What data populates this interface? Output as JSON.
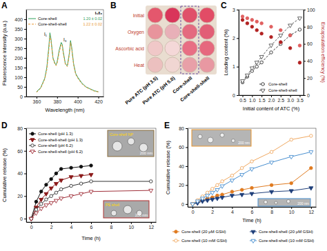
{
  "chart_data": [
    {
      "type": "line",
      "title": "A",
      "x_label": "Wavelength (nm)",
      "y_label": "Fluorescence intensity (a.u.)",
      "x": [
        360,
        364,
        368,
        370,
        372,
        373,
        374,
        376,
        378,
        379,
        380,
        382,
        384,
        385,
        386,
        388,
        390,
        392,
        393,
        394,
        396,
        398,
        400,
        404,
        408,
        412,
        416,
        420
      ],
      "xlim": [
        350,
        425
      ],
      "xticks": [
        360,
        380,
        400,
        420
      ],
      "ylim": [
        0,
        450
      ],
      "yticks": [
        0,
        50,
        100,
        150,
        200,
        250,
        300,
        350,
        400
      ],
      "legend": "top-right",
      "annotations": [
        "I₁/I₃",
        "1.20 ± 0.02",
        "1.22 ± 0.02",
        "I₁",
        "I₃"
      ],
      "series": [
        {
          "name": "Core-shell",
          "color": "#2e9e5b",
          "line_style": "solid",
          "values": [
            25,
            45,
            95,
            150,
            260,
            330,
            300,
            200,
            170,
            165,
            180,
            240,
            280,
            270,
            230,
            170,
            160,
            230,
            290,
            260,
            170,
            120,
            100,
            70,
            50,
            40,
            30,
            25
          ]
        },
        {
          "name": "Core-shell-shell",
          "color": "#e8952f",
          "line_style": "dashed",
          "values": [
            22,
            42,
            90,
            140,
            245,
            315,
            290,
            195,
            165,
            160,
            172,
            230,
            270,
            262,
            222,
            165,
            155,
            222,
            280,
            252,
            165,
            115,
            95,
            66,
            48,
            38,
            28,
            24
          ]
        }
      ]
    },
    {
      "type": "scatter",
      "title": "C",
      "x_label": "Initial content of ATC (%)",
      "y_label": "Loading content (%)",
      "y2_label": "Encapsulation efficiency (%)",
      "x": [
        0.5,
        0.75,
        1,
        1.25,
        1.5,
        2,
        2.5,
        3,
        3.5
      ],
      "xlim": [
        0.3,
        3.7
      ],
      "xticks": [
        0.5,
        {
          "value": 1,
          "label": "1.0"
        },
        1.5,
        {
          "value": 2,
          "label": "2.0"
        },
        2.5,
        {
          "value": 3,
          "label": "3.0"
        },
        3.5
      ],
      "ylim": [
        0,
        3
      ],
      "yticks": [
        0,
        1,
        2,
        3
      ],
      "y2lim": [
        0,
        100
      ],
      "y2ticks": [
        0,
        20,
        40,
        60,
        80,
        100
      ],
      "legend": "bottom-right",
      "series": [
        {
          "name": "Core-shell",
          "color": "#333333",
          "marker": "circle-open",
          "line_style": "dashed",
          "values": [
            0.45,
            0.65,
            0.85,
            1.0,
            1.15,
            1.5,
            1.8,
            2.1,
            2.3
          ]
        },
        {
          "name": "Core-shell-shell",
          "color": "#555555",
          "marker": "triangle-down-open",
          "line_style": "dashed",
          "values": [
            0.5,
            0.7,
            0.95,
            1.15,
            1.35,
            1.75,
            2.1,
            2.45,
            2.7
          ]
        },
        {
          "color": "#b22222",
          "marker": "circle",
          "axis": "y2",
          "values": [
            88,
            84,
            80,
            76,
            72,
            68,
            62,
            55,
            38
          ]
        },
        {
          "color": "#e06060",
          "marker": "circle",
          "axis": "y2",
          "values": [
            92,
            90,
            88,
            86,
            84,
            80,
            76,
            70,
            58
          ]
        }
      ]
    },
    {
      "type": "line",
      "title": "D",
      "x_label": "Time (h)",
      "y_label": "Cumulative release (%)",
      "x": [
        0,
        0.5,
        1,
        1.5,
        2,
        2.5,
        3,
        4,
        5,
        6,
        12
      ],
      "xlim": [
        -0.5,
        12.5
      ],
      "xticks": [
        0,
        2,
        4,
        6,
        8,
        10,
        12
      ],
      "ylim": [
        -3,
        80
      ],
      "yticks": [
        0,
        20,
        40,
        60,
        80
      ],
      "legend": "top-left",
      "annotations": [
        "Core-shell NP",
        "200 nm",
        "PE shell",
        "200 nm"
      ],
      "series": [
        {
          "name": "Core-shell (pH 1.3)",
          "color": "#111111",
          "marker": "circle",
          "line_style": "solid",
          "values": [
            0,
            15,
            24,
            30,
            35,
            40,
            44,
            45,
            46,
            47,
            null
          ]
        },
        {
          "name": "Core-shell-shell (pH 1.3)",
          "color": "#8b1a1a",
          "marker": "triangle-down",
          "line_style": "solid",
          "values": [
            0,
            10,
            17,
            22,
            27,
            31,
            34,
            37,
            38,
            39,
            null
          ]
        },
        {
          "name": "Core-shell (pH 6.2)",
          "color": "#333333",
          "marker": "circle-open",
          "line_style": "solid",
          "values": [
            0,
            8,
            13,
            17,
            20,
            23,
            26,
            29,
            31,
            33,
            33
          ]
        },
        {
          "name": "Core-shell-shell (pH 6.2)",
          "color": "#a0303a",
          "marker": "triangle-down-open",
          "line_style": "solid",
          "values": [
            0,
            5,
            9,
            12,
            14,
            16,
            18,
            20,
            22,
            24,
            25
          ]
        }
      ]
    },
    {
      "type": "line",
      "title": "E",
      "x_label": "Time (h)",
      "y_label": "Cumulative release (%)",
      "x": [
        0,
        0.5,
        1,
        1.5,
        2,
        2.5,
        3,
        4,
        5,
        6,
        8,
        10,
        12
      ],
      "xlim": [
        -0.5,
        12.5
      ],
      "xticks": [
        0,
        2,
        4,
        6,
        8,
        10,
        12
      ],
      "ylim": [
        -3,
        80
      ],
      "yticks": [
        0,
        20,
        40,
        60,
        80
      ],
      "legend": "bottom",
      "annotations": [
        "200 nm",
        "200 nm"
      ],
      "series": [
        {
          "name": "Core-shell (20 μM GSH)",
          "color": "#e07b20",
          "marker": "circle",
          "line_style": "solid",
          "values": [
            0,
            2,
            4,
            6,
            7,
            9,
            10,
            13,
            15,
            17,
            20,
            22,
            38
          ]
        },
        {
          "name": "Core-shell-shell (20 μM GSH)",
          "color": "#1f3f7a",
          "marker": "triangle-down",
          "line_style": "solid",
          "values": [
            0,
            1,
            3,
            4,
            5,
            6,
            7,
            9,
            10,
            11,
            13,
            14,
            17
          ]
        },
        {
          "name": "Core-shell (10 mM GSH)",
          "color": "#f0a860",
          "marker": "circle-open",
          "line_style": "solid",
          "values": [
            0,
            4,
            8,
            12,
            16,
            20,
            24,
            30,
            38,
            45,
            55,
            68,
            72
          ]
        },
        {
          "name": "Core-shell-shell (10 mM GSH)",
          "color": "#4a90d0",
          "marker": "triangle-down-open",
          "line_style": "solid",
          "values": [
            0,
            3,
            6,
            9,
            12,
            15,
            19,
            25,
            31,
            37,
            44,
            50,
            55
          ]
        }
      ]
    }
  ],
  "image_panel": {
    "title": "B",
    "rows": [
      "Initial",
      "Oxygen",
      "Ascorbic acid",
      "Heat"
    ],
    "columns": [
      "Pure ATC (pH 3.5)",
      "Pure ATC (pH 5.0)",
      "Core-shell",
      "Core-shell-shell"
    ]
  }
}
